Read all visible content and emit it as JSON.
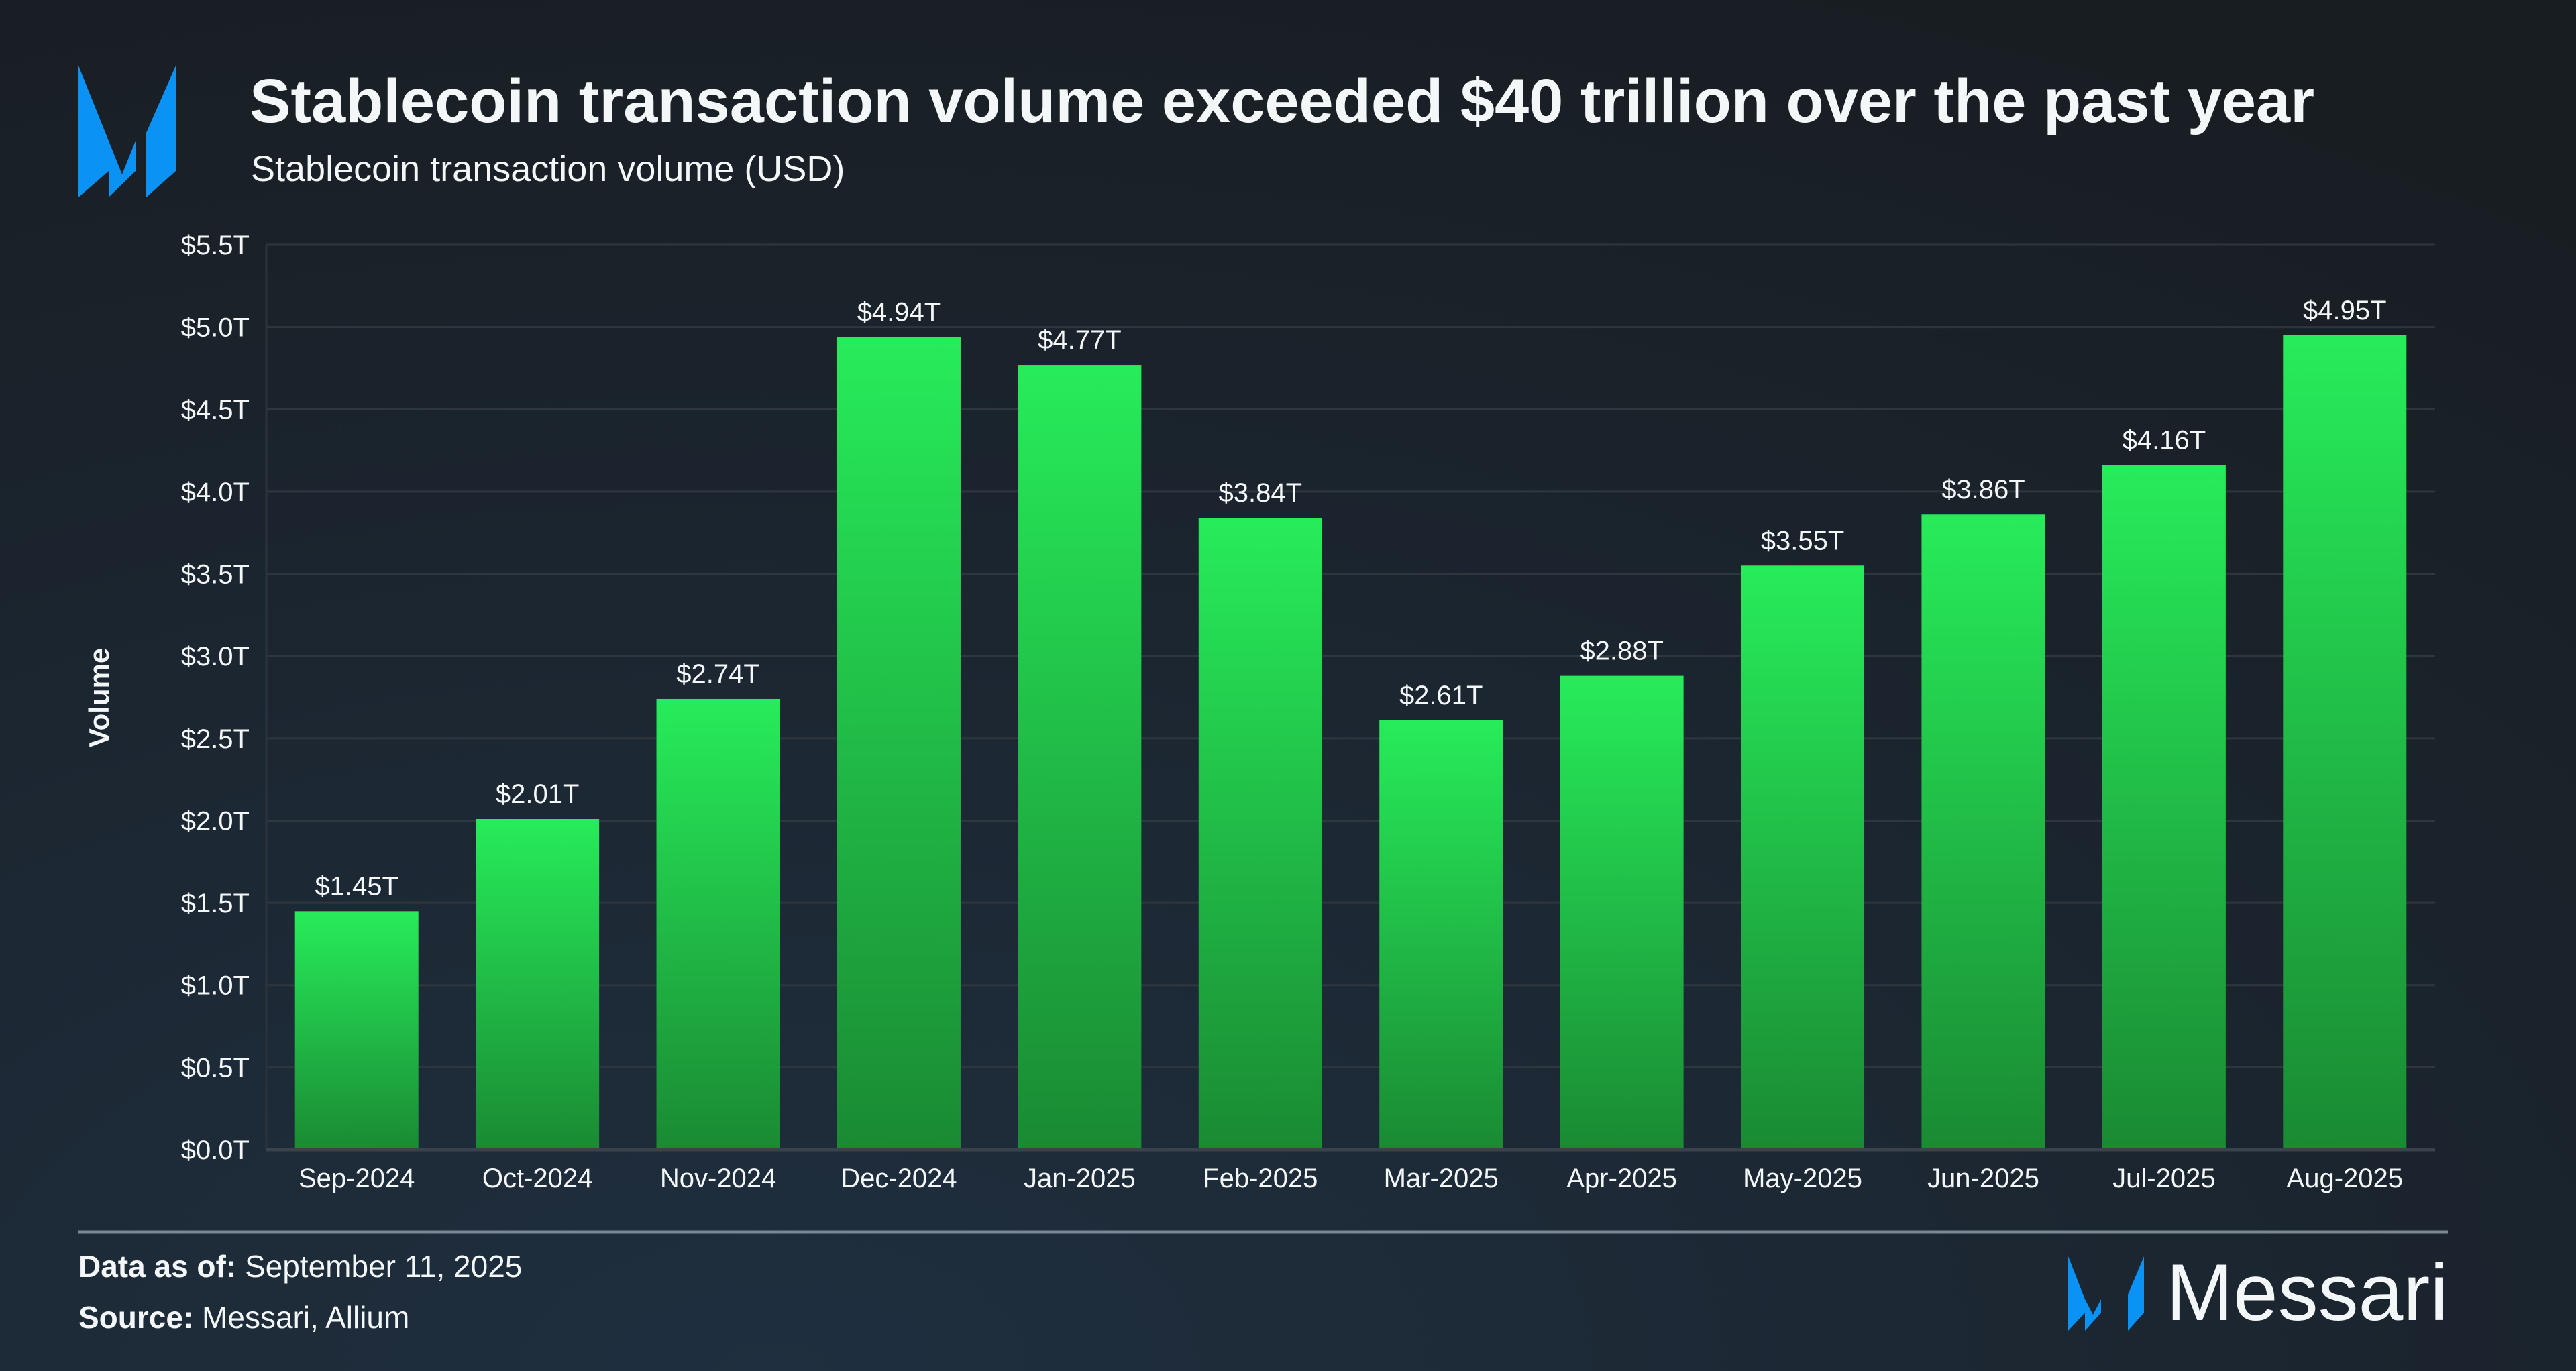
{
  "header": {
    "title": "Stablecoin transaction volume exceeded $40 trillion over the past year",
    "subtitle": "Stablecoin transaction volume (USD)"
  },
  "chart_data": {
    "type": "bar",
    "title": "Stablecoin transaction volume exceeded $40 trillion over the past year",
    "subtitle": "Stablecoin transaction volume (USD)",
    "xlabel": "",
    "ylabel": "Volume",
    "ylim": [
      0,
      5.5
    ],
    "y_unit": "trillion USD",
    "yticks": [
      "$0.0T",
      "$0.5T",
      "$1.0T",
      "$1.5T",
      "$2.0T",
      "$2.5T",
      "$3.0T",
      "$3.5T",
      "$4.0T",
      "$4.5T",
      "$5.0T",
      "$5.5T"
    ],
    "grid": true,
    "categories": [
      "Sep-2024",
      "Oct-2024",
      "Nov-2024",
      "Dec-2024",
      "Jan-2025",
      "Feb-2025",
      "Mar-2025",
      "Apr-2025",
      "May-2025",
      "Jun-2025",
      "Jul-2025",
      "Aug-2025"
    ],
    "values": [
      1.45,
      2.01,
      2.74,
      4.94,
      4.77,
      3.84,
      2.61,
      2.88,
      3.55,
      3.86,
      4.16,
      4.95
    ],
    "data_labels": [
      "$1.45T",
      "$2.01T",
      "$2.74T",
      "$4.94T",
      "$4.77T",
      "$3.84T",
      "$2.61T",
      "$2.88T",
      "$3.55T",
      "$3.86T",
      "$4.16T",
      "$4.95T"
    ],
    "colors": {
      "bar_top": "#27ec5a",
      "bar_bottom": "#1a8a33",
      "background": "#181d22",
      "accent": "#0a93f5"
    }
  },
  "footer": {
    "data_as_of_label": "Data as of:",
    "data_as_of_value": " September 11, 2025",
    "source_label": "Source:",
    "source_value": " Messari, Allium",
    "brand": "Messari"
  }
}
